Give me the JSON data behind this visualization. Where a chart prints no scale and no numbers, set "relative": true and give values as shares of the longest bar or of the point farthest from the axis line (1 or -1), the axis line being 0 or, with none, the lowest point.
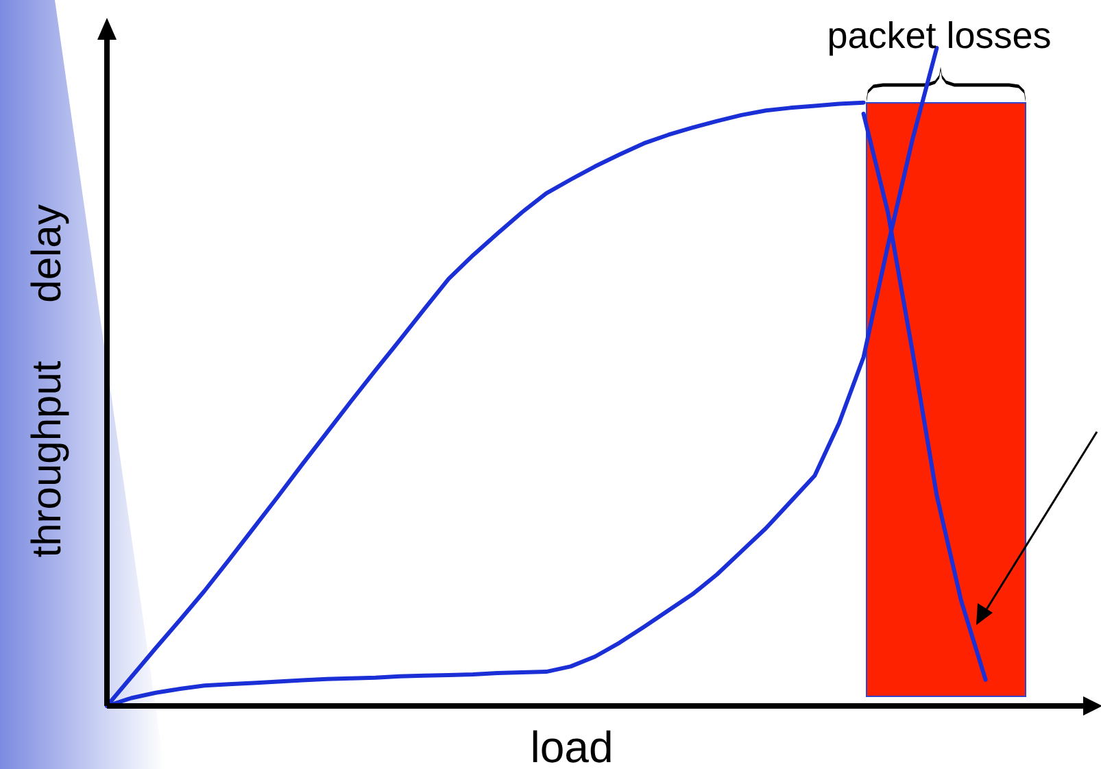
{
  "chart_data": {
    "type": "line",
    "relative": true,
    "xlabel": "load",
    "ylabel": "throughput",
    "annotations": [
      "delay",
      "packet losses"
    ],
    "line_style": "solid",
    "categories": [
      null,
      null,
      null,
      null,
      null,
      null,
      null,
      null,
      null,
      null,
      null,
      null,
      null,
      null,
      null,
      null,
      null,
      null,
      null,
      null,
      null,
      null,
      null,
      null,
      null,
      null,
      null,
      null,
      null,
      null,
      null,
      null,
      null,
      null,
      null,
      null,
      null,
      null,
      null,
      null,
      null
    ],
    "series": [
      {
        "color": "#1a2fd6",
        "values": [
          0,
          0.044,
          0.088,
          0.131,
          0.175,
          0.222,
          0.27,
          0.318,
          0.367,
          0.415,
          0.463,
          0.51,
          0.556,
          0.603,
          0.649,
          0.685,
          0.718,
          0.75,
          0.779,
          0.8,
          0.82,
          0.838,
          0.855,
          0.868,
          0.879,
          0.889,
          0.898,
          0.905,
          0.909,
          0.912,
          0.915,
          0.917,
          null,
          null,
          null,
          null,
          null,
          null,
          null,
          null,
          null
        ]
      },
      {
        "color": "#1a2fd6",
        "values": [
          0,
          0.012,
          0.02,
          0.026,
          0.031,
          0.033,
          0.035,
          0.037,
          0.039,
          0.041,
          0.042,
          0.043,
          0.045,
          0.046,
          0.047,
          0.048,
          0.05,
          0.051,
          0.052,
          0.06,
          0.075,
          0.096,
          0.12,
          0.145,
          0.17,
          0.2,
          0.235,
          0.27,
          0.31,
          0.35,
          0.43,
          0.53,
          0.7,
          0.86,
          1,
          null,
          null,
          null,
          null,
          null,
          null
        ]
      },
      {
        "color": "#1a2fd6",
        "values": [
          null,
          null,
          null,
          null,
          null,
          null,
          null,
          null,
          null,
          null,
          null,
          null,
          null,
          null,
          null,
          null,
          null,
          null,
          null,
          null,
          null,
          null,
          null,
          null,
          null,
          null,
          null,
          null,
          null,
          null,
          null,
          0.9,
          0.75,
          0.54,
          0.32,
          0.16,
          0.04,
          null,
          null,
          null,
          null
        ]
      }
    ]
  }
}
